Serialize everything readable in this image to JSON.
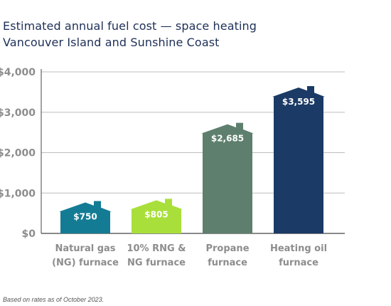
{
  "chart_data": {
    "type": "bar",
    "title": "Estimated annual fuel cost — space heating",
    "subtitle": "Vancouver Island and Sunshine Coast",
    "categories": [
      [
        "Natural gas",
        "(NG) furnace"
      ],
      [
        "10% RNG &",
        "NG furnace"
      ],
      [
        "Propane",
        "furnace"
      ],
      [
        "Heating oil",
        "furnace"
      ]
    ],
    "values": [
      750,
      805,
      2685,
      3595
    ],
    "value_labels": [
      "$750",
      "$805",
      "$2,685",
      "$3,595"
    ],
    "colors": [
      "#137c94",
      "#a9df3a",
      "#5e7f6e",
      "#1b3a66"
    ],
    "y_ticks": [
      {
        "value": 0,
        "label": "$0"
      },
      {
        "value": 1000,
        "label": "$1,000"
      },
      {
        "value": 2000,
        "label": "$2,000"
      },
      {
        "value": 3000,
        "label": "$3,000"
      },
      {
        "value": 4000,
        "label": "$4,000"
      }
    ],
    "ylim": [
      0,
      4000
    ],
    "grid": true,
    "legend": "none",
    "bar_shape": "house"
  },
  "footnote": "Based on rates as of October 2023."
}
